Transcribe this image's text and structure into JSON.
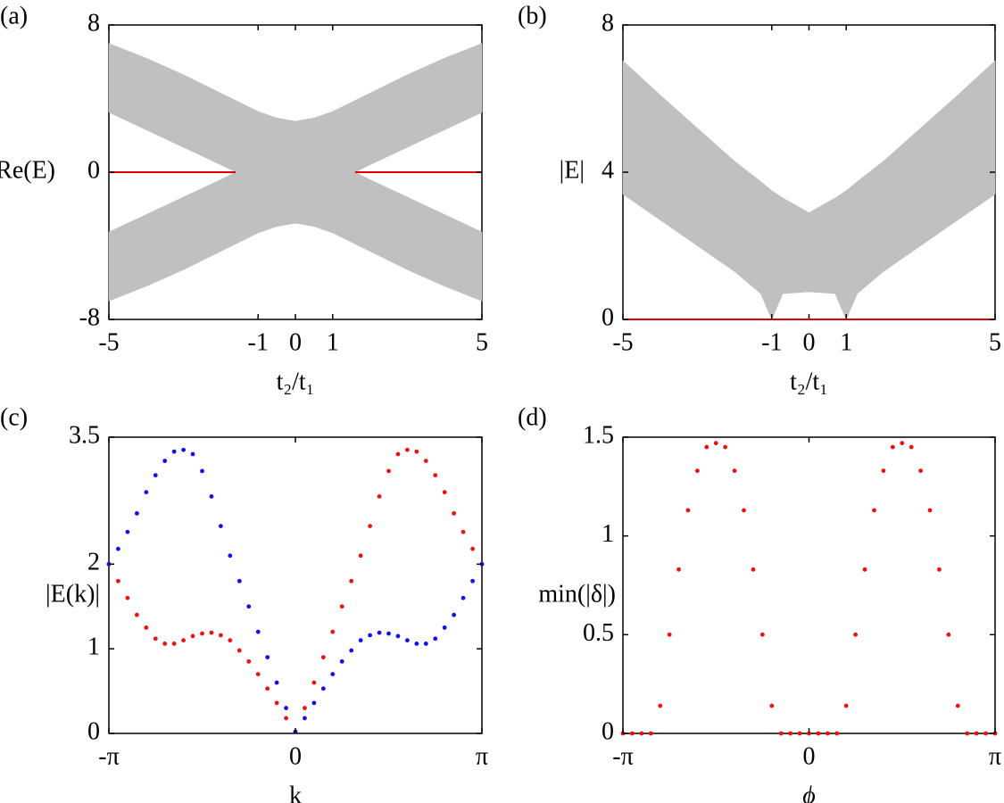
{
  "chart_data": [
    {
      "type": "band",
      "label": "(a)",
      "xlabel": "t₂/t₁",
      "ylabel": "Re(E)",
      "xlim": [
        -5,
        5
      ],
      "ylim": [
        -8,
        8
      ],
      "xticks": [
        -5,
        -1,
        0,
        1,
        5
      ],
      "yticks": [
        -8,
        0,
        8
      ],
      "x": [
        -5,
        -4,
        -3,
        -2,
        -1.6,
        -1,
        -0.5,
        0,
        0.5,
        1,
        1.6,
        2,
        3,
        4,
        5
      ],
      "bands": [
        {
          "color": "#c0c0c0",
          "upper": [
            7.0,
            6.2,
            5.3,
            4.3,
            3.9,
            3.3,
            2.95,
            2.77,
            2.95,
            3.3,
            3.9,
            4.3,
            5.3,
            6.2,
            7.0
          ],
          "lower": [
            3.25,
            2.3,
            1.35,
            0.4,
            0,
            0,
            0,
            0,
            0,
            0,
            0,
            0.4,
            1.35,
            2.3,
            3.25
          ]
        },
        {
          "color": "#c0c0c0",
          "upper": [
            -3.25,
            -2.3,
            -1.35,
            -0.4,
            0,
            0,
            0,
            0,
            0,
            0,
            0,
            -0.4,
            -1.35,
            -2.3,
            -3.25
          ],
          "lower": [
            -7.0,
            -6.2,
            -5.3,
            -4.3,
            -3.9,
            -3.3,
            -2.95,
            -2.77,
            -2.95,
            -3.3,
            -3.9,
            -4.3,
            -5.3,
            -6.2,
            -7.0
          ]
        }
      ],
      "series": [
        {
          "color": "#e00000",
          "x": [
            -5,
            -1.6,
            0,
            1.6,
            5
          ],
          "values": [
            0,
            0,
            null,
            0,
            0
          ]
        }
      ]
    },
    {
      "type": "band",
      "label": "(b)",
      "xlabel": "t₂/t₁",
      "ylabel": "|E|",
      "xlim": [
        -5,
        5
      ],
      "ylim": [
        0,
        8
      ],
      "xticks": [
        -5,
        -1,
        0,
        1,
        5
      ],
      "yticks": [
        0,
        4,
        8
      ],
      "x": [
        -5,
        -4,
        -3,
        -2,
        -1.3,
        -1,
        -0.7,
        0,
        0.7,
        1,
        1.3,
        2,
        3,
        4,
        5
      ],
      "bands": [
        {
          "color": "#c0c0c0",
          "upper": [
            7.03,
            6.1,
            5.2,
            4.3,
            3.75,
            3.5,
            3.3,
            2.9,
            3.3,
            3.5,
            3.75,
            4.3,
            5.2,
            6.1,
            7.03
          ],
          "lower": [
            3.4,
            2.7,
            2.0,
            1.3,
            0.7,
            0,
            0.7,
            0.75,
            0.7,
            0,
            0.7,
            1.3,
            2.0,
            2.7,
            3.4
          ]
        }
      ],
      "series": [
        {
          "color": "#e00000",
          "x": [
            -5,
            5
          ],
          "values": [
            0,
            0
          ]
        }
      ]
    },
    {
      "type": "scatter",
      "label": "(c)",
      "xlabel": "k",
      "ylabel": "|E(k)|",
      "xlim": [
        -3.1416,
        3.1416
      ],
      "ylim": [
        0,
        3.5
      ],
      "xticks": [
        {
          "value": -3.1416,
          "label": "-π"
        },
        0,
        {
          "value": 3.1416,
          "label": "π"
        }
      ],
      "yticks": [
        0,
        1,
        2,
        3.5
      ],
      "x": [
        -3.142,
        -2.985,
        -2.827,
        -2.67,
        -2.513,
        -2.356,
        -2.199,
        -2.042,
        -1.885,
        -1.728,
        -1.571,
        -1.414,
        -1.257,
        -1.1,
        -0.942,
        -0.785,
        -0.628,
        -0.471,
        -0.314,
        -0.157,
        0,
        0.157,
        0.314,
        0.471,
        0.628,
        0.785,
        0.942,
        1.1,
        1.257,
        1.414,
        1.571,
        1.728,
        1.885,
        2.042,
        2.199,
        2.356,
        2.513,
        2.67,
        2.827,
        2.985,
        3.142
      ],
      "series": [
        {
          "color": "#f01010",
          "values": [
            2.0,
            1.8,
            1.6,
            1.4,
            1.25,
            1.12,
            1.06,
            1.06,
            1.1,
            1.15,
            1.18,
            1.19,
            1.16,
            1.1,
            0.98,
            0.85,
            0.7,
            0.53,
            0.36,
            0.18,
            0.02,
            0.3,
            0.6,
            0.9,
            1.2,
            1.5,
            1.8,
            2.1,
            2.45,
            2.8,
            3.1,
            3.3,
            3.35,
            3.33,
            3.22,
            3.05,
            2.85,
            2.6,
            2.38,
            2.18,
            2.0
          ]
        },
        {
          "color": "#1010f0",
          "values": [
            2.0,
            2.18,
            2.38,
            2.6,
            2.85,
            3.05,
            3.22,
            3.33,
            3.35,
            3.3,
            3.1,
            2.8,
            2.45,
            2.1,
            1.8,
            1.5,
            1.2,
            0.9,
            0.6,
            0.3,
            0.02,
            0.18,
            0.36,
            0.53,
            0.7,
            0.85,
            0.98,
            1.1,
            1.16,
            1.19,
            1.18,
            1.15,
            1.1,
            1.06,
            1.06,
            1.12,
            1.25,
            1.4,
            1.6,
            1.8,
            2.0
          ]
        }
      ]
    },
    {
      "type": "scatter",
      "label": "(d)",
      "xlabel": "ϕ",
      "ylabel": "min(|δ|)",
      "xlim": [
        -3.1416,
        3.1416
      ],
      "ylim": [
        0,
        1.5
      ],
      "xticks": [
        {
          "value": -3.1416,
          "label": "-π"
        },
        0,
        {
          "value": 3.1416,
          "label": "π"
        }
      ],
      "yticks": [
        0,
        0.5,
        1,
        1.5
      ],
      "x": [
        -3.142,
        -2.985,
        -2.827,
        -2.67,
        -2.513,
        -2.356,
        -2.199,
        -2.042,
        -1.885,
        -1.728,
        -1.571,
        -1.414,
        -1.257,
        -1.1,
        -0.942,
        -0.785,
        -0.628,
        -0.471,
        -0.314,
        -0.157,
        0,
        0.157,
        0.314,
        0.471,
        0.628,
        0.785,
        0.942,
        1.1,
        1.257,
        1.414,
        1.571,
        1.728,
        1.885,
        2.042,
        2.199,
        2.356,
        2.513,
        2.67,
        2.827,
        2.985,
        3.142
      ],
      "series": [
        {
          "color": "#f01010",
          "values": [
            0,
            0,
            0,
            0,
            0.14,
            0.5,
            0.83,
            1.13,
            1.33,
            1.45,
            1.47,
            1.45,
            1.33,
            1.13,
            0.83,
            0.5,
            0.14,
            0,
            0,
            0,
            0,
            0,
            0,
            0,
            0.14,
            0.5,
            0.83,
            1.13,
            1.33,
            1.45,
            1.47,
            1.45,
            1.33,
            1.13,
            0.83,
            0.5,
            0.14,
            0,
            0,
            0,
            0
          ]
        }
      ]
    }
  ]
}
